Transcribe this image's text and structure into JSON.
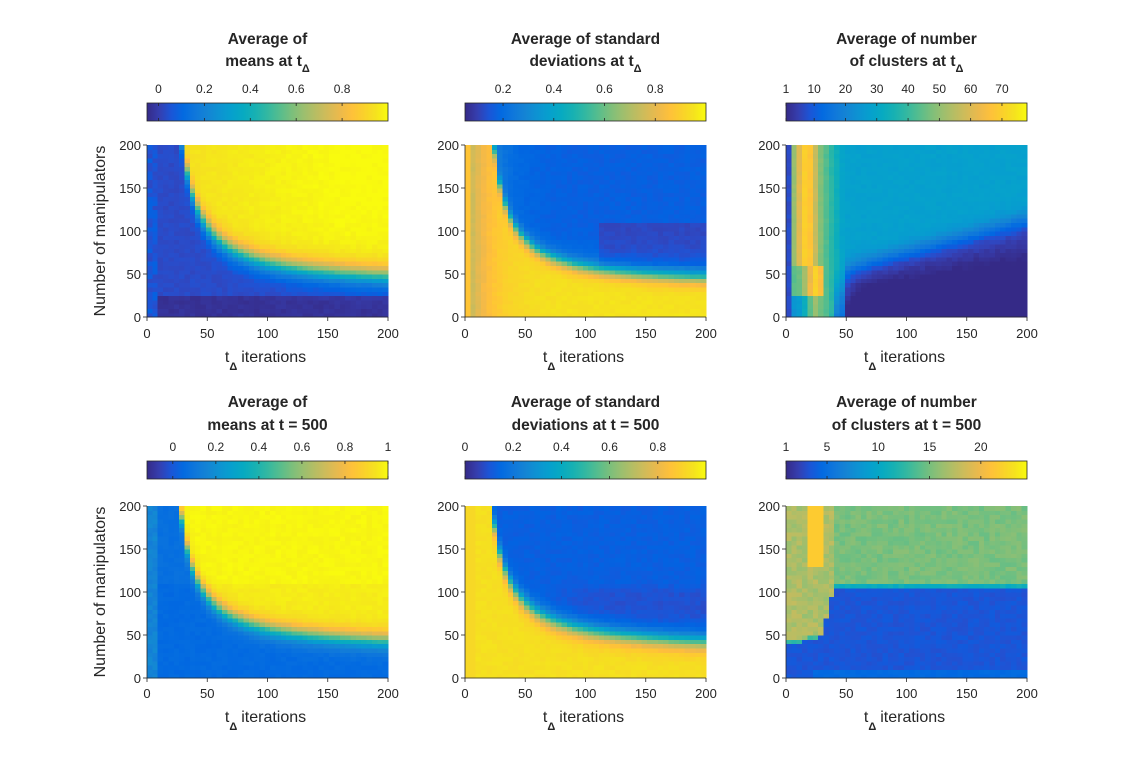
{
  "chart_data": [
    {
      "id": "p1",
      "type": "heatmap",
      "title": [
        "Average of",
        "means at t"
      ],
      "title_sub": "Δ",
      "colorbar": {
        "ticks": [
          "0",
          "0.2",
          "0.4",
          "0.6",
          "0.8"
        ],
        "tick_values": [
          0,
          0.2,
          0.4,
          0.6,
          0.8
        ],
        "range": [
          -0.05,
          1.0
        ]
      },
      "xlabel": "t",
      "xlabel_sub": "Δ",
      "xlabel_rest": "iterations",
      "ylabel": "Number of manipulators",
      "xlim": [
        0,
        200
      ],
      "ylim": [
        0,
        200
      ],
      "xticks": [
        "0",
        "50",
        "100",
        "150",
        "200"
      ],
      "yticks": [
        "0",
        "50",
        "100",
        "150",
        "200"
      ],
      "pattern": "means",
      "summary": {
        "low_region_value": 0.0,
        "high_region_value": 0.95,
        "transition": "hyperbolic boundary from (30,200) to (200,40)"
      }
    },
    {
      "id": "p2",
      "type": "heatmap",
      "title": [
        "Average of standard",
        "deviations at t"
      ],
      "title_sub": "Δ",
      "colorbar": {
        "ticks": [
          "0.2",
          "0.4",
          "0.6",
          "0.8"
        ],
        "tick_values": [
          0.2,
          0.4,
          0.6,
          0.8
        ],
        "range": [
          0.05,
          1.0
        ]
      },
      "xlabel": "t",
      "xlabel_sub": "Δ",
      "xlabel_rest": "iterations",
      "ylabel": "",
      "xlim": [
        0,
        200
      ],
      "ylim": [
        0,
        200
      ],
      "xticks": [
        "0",
        "50",
        "100",
        "150",
        "200"
      ],
      "yticks": [
        "0",
        "50",
        "100",
        "150",
        "200"
      ],
      "pattern": "std",
      "summary": {
        "above_boundary": 0.12,
        "below_boundary": 0.95,
        "near_zero_t": 0.7
      }
    },
    {
      "id": "p3",
      "type": "heatmap",
      "title": [
        "Average of number",
        "of clusters at t"
      ],
      "title_sub": "Δ",
      "colorbar": {
        "ticks": [
          "1",
          "10",
          "20",
          "30",
          "40",
          "50",
          "60",
          "70"
        ],
        "tick_values": [
          1,
          10,
          20,
          30,
          40,
          50,
          60,
          70
        ],
        "range": [
          1,
          78
        ]
      },
      "xlabel": "t",
      "xlabel_sub": "Δ",
      "xlabel_rest": "iterations",
      "ylabel": "",
      "xlim": [
        0,
        200
      ],
      "ylim": [
        0,
        200
      ],
      "xticks": [
        "0",
        "50",
        "100",
        "150",
        "200"
      ],
      "yticks": [
        "0",
        "50",
        "100",
        "150",
        "200"
      ],
      "pattern": "clusters1",
      "summary": {
        "background": 25,
        "low_t_band": 70,
        "dark_wedge": 3
      }
    },
    {
      "id": "p4",
      "type": "heatmap",
      "title": [
        "Average of",
        "means at t = 500"
      ],
      "title_sub": "",
      "colorbar": {
        "ticks": [
          "0",
          "0.2",
          "0.4",
          "0.6",
          "0.8",
          "1"
        ],
        "tick_values": [
          0,
          0.2,
          0.4,
          0.6,
          0.8,
          1.0
        ],
        "range": [
          -0.12,
          1.0
        ]
      },
      "xlabel": "t",
      "xlabel_sub": "Δ",
      "xlabel_rest": "iterations",
      "ylabel": "Number of manipulators",
      "xlim": [
        0,
        200
      ],
      "ylim": [
        0,
        200
      ],
      "xticks": [
        "0",
        "50",
        "100",
        "150",
        "200"
      ],
      "yticks": [
        "0",
        "50",
        "100",
        "150",
        "200"
      ],
      "pattern": "means500",
      "summary": {
        "low_region_value": 0.0,
        "high_region_value": 0.95
      }
    },
    {
      "id": "p5",
      "type": "heatmap",
      "title": [
        "Average of standard",
        "deviations at t = 500"
      ],
      "title_sub": "",
      "colorbar": {
        "ticks": [
          "0",
          "0.2",
          "0.4",
          "0.6",
          "0.8"
        ],
        "tick_values": [
          0,
          0.2,
          0.4,
          0.6,
          0.8
        ],
        "range": [
          0.0,
          1.0
        ]
      },
      "xlabel": "t",
      "xlabel_sub": "Δ",
      "xlabel_rest": "iterations",
      "ylabel": "",
      "xlim": [
        0,
        200
      ],
      "ylim": [
        0,
        200
      ],
      "xticks": [
        "0",
        "50",
        "100",
        "150",
        "200"
      ],
      "yticks": [
        "0",
        "50",
        "100",
        "150",
        "200"
      ],
      "pattern": "std500",
      "summary": {
        "above_boundary": 0.1,
        "below_boundary": 0.95
      }
    },
    {
      "id": "p6",
      "type": "heatmap",
      "title": [
        "Average of number",
        "of clusters at t = 500"
      ],
      "title_sub": "",
      "colorbar": {
        "ticks": [
          "1",
          "5",
          "10",
          "15",
          "20"
        ],
        "tick_values": [
          1,
          5,
          10,
          15,
          20
        ],
        "range": [
          1,
          24.5
        ]
      },
      "xlabel": "t",
      "xlabel_sub": "Δ",
      "xlabel_rest": "iterations",
      "ylabel": "",
      "xlim": [
        0,
        200
      ],
      "ylim": [
        0,
        200
      ],
      "xticks": [
        "0",
        "50",
        "100",
        "150",
        "200"
      ],
      "yticks": [
        "0",
        "50",
        "100",
        "150",
        "200"
      ],
      "pattern": "clusters500",
      "summary": {
        "upper_region": 17,
        "lower_region": 2,
        "boundary_y": 105
      }
    }
  ]
}
